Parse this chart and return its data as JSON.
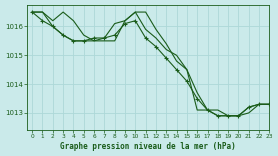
{
  "bg_color": "#caeaea",
  "grid_color": "#b0d8d8",
  "line_color": "#1a5c1a",
  "marker_color": "#1a5c1a",
  "title": "Graphe pression niveau de la mer (hPa)",
  "xlim": [
    -0.5,
    23
  ],
  "ylim": [
    1012.4,
    1016.75
  ],
  "yticks": [
    1013,
    1014,
    1015,
    1016
  ],
  "xticks": [
    0,
    1,
    2,
    3,
    4,
    5,
    6,
    7,
    8,
    9,
    10,
    11,
    12,
    13,
    14,
    15,
    16,
    17,
    18,
    19,
    20,
    21,
    22,
    23
  ],
  "series": [
    {
      "x": [
        0,
        1,
        2,
        3,
        4,
        5,
        6,
        7,
        8,
        9,
        10,
        11,
        12,
        13,
        14,
        15,
        16,
        17,
        18,
        19,
        20,
        21,
        22,
        23
      ],
      "y": [
        1016.5,
        1016.5,
        1016.2,
        1016.5,
        1016.2,
        1015.7,
        1015.5,
        1015.5,
        1015.5,
        1016.2,
        1016.5,
        1016.5,
        1015.9,
        1015.4,
        1014.8,
        1014.5,
        1013.1,
        1013.1,
        1013.1,
        1012.9,
        1012.9,
        1013.2,
        1013.3,
        1013.3
      ],
      "with_markers": false
    },
    {
      "x": [
        0,
        1,
        2,
        3,
        4,
        5,
        6,
        7,
        8,
        9,
        10,
        11,
        12,
        13,
        14,
        15,
        16,
        17,
        18,
        19,
        20,
        21,
        22,
        23
      ],
      "y": [
        1016.5,
        1016.5,
        1016.0,
        1015.7,
        1015.5,
        1015.5,
        1015.5,
        1015.6,
        1016.1,
        1016.2,
        1016.5,
        1015.9,
        1015.6,
        1015.2,
        1015.0,
        1014.5,
        1013.7,
        1013.1,
        1012.9,
        1012.9,
        1012.9,
        1013.0,
        1013.3,
        1013.3
      ],
      "with_markers": false
    },
    {
      "x": [
        0,
        1,
        2,
        3,
        4,
        5,
        6,
        7,
        8,
        9,
        10,
        11,
        12,
        13,
        14,
        15,
        16,
        17,
        18,
        19,
        20,
        21,
        22,
        23
      ],
      "y": [
        1016.5,
        1016.2,
        1016.0,
        1015.7,
        1015.5,
        1015.5,
        1015.6,
        1015.6,
        1015.7,
        1016.1,
        1016.2,
        1015.6,
        1015.3,
        1014.9,
        1014.5,
        1014.1,
        1013.5,
        1013.1,
        1012.9,
        1012.9,
        1012.9,
        1013.2,
        1013.3,
        1013.3
      ],
      "with_markers": true
    }
  ]
}
